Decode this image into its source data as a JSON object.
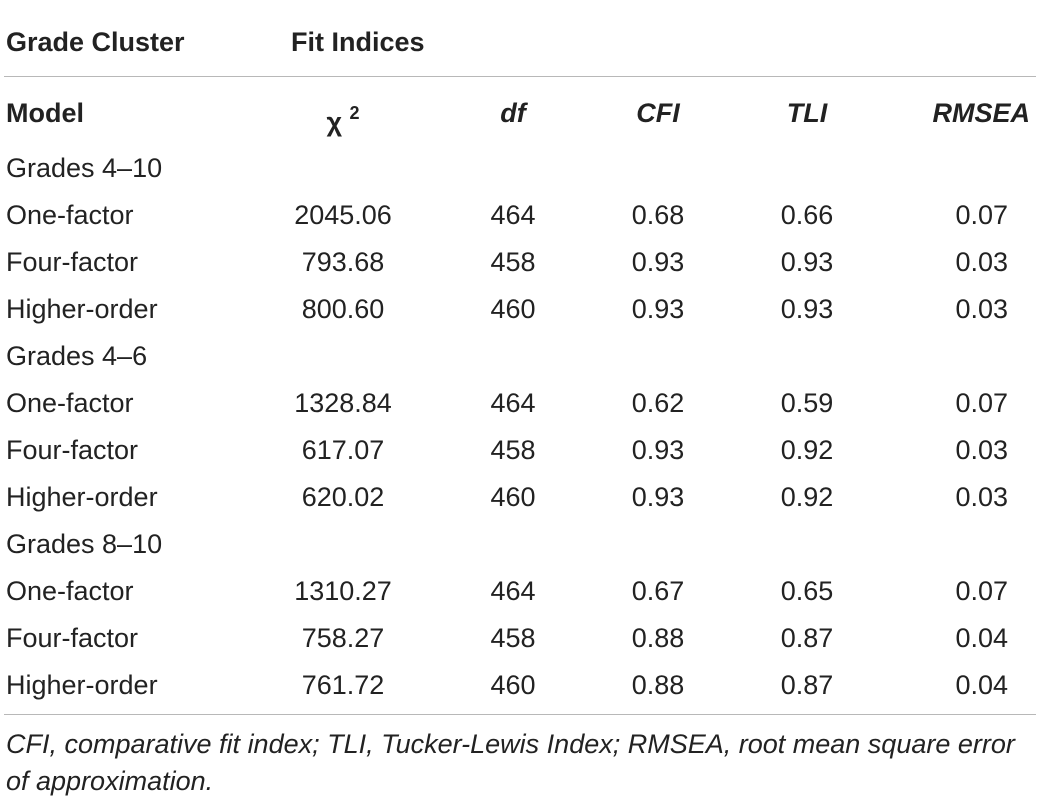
{
  "header": {
    "grade_cluster": "Grade Cluster",
    "fit_indices": "Fit Indices",
    "model": "Model",
    "chi_symbol": "χ",
    "chi_sup": "2",
    "df": "df",
    "cfi": "CFI",
    "tli": "TLI",
    "rmsea": "RMSEA"
  },
  "groups": [
    {
      "label": "Grades 4–10",
      "rows": [
        {
          "model": "One-factor",
          "chi2": "2045.06",
          "df": "464",
          "cfi": "0.68",
          "tli": "0.66",
          "rmsea": "0.07"
        },
        {
          "model": "Four-factor",
          "chi2": "793.68",
          "df": "458",
          "cfi": "0.93",
          "tli": "0.93",
          "rmsea": "0.03"
        },
        {
          "model": "Higher-order",
          "chi2": "800.60",
          "df": "460",
          "cfi": "0.93",
          "tli": "0.93",
          "rmsea": "0.03"
        }
      ]
    },
    {
      "label": "Grades 4–6",
      "rows": [
        {
          "model": "One-factor",
          "chi2": "1328.84",
          "df": "464",
          "cfi": "0.62",
          "tli": "0.59",
          "rmsea": "0.07"
        },
        {
          "model": "Four-factor",
          "chi2": "617.07",
          "df": "458",
          "cfi": "0.93",
          "tli": "0.92",
          "rmsea": "0.03"
        },
        {
          "model": "Higher-order",
          "chi2": "620.02",
          "df": "460",
          "cfi": "0.93",
          "tli": "0.92",
          "rmsea": "0.03"
        }
      ]
    },
    {
      "label": "Grades 8–10",
      "rows": [
        {
          "model": "One-factor",
          "chi2": "1310.27",
          "df": "464",
          "cfi": "0.67",
          "tli": "0.65",
          "rmsea": "0.07"
        },
        {
          "model": "Four-factor",
          "chi2": "758.27",
          "df": "458",
          "cfi": "0.88",
          "tli": "0.87",
          "rmsea": "0.04"
        },
        {
          "model": "Higher-order",
          "chi2": "761.72",
          "df": "460",
          "cfi": "0.88",
          "tli": "0.87",
          "rmsea": "0.04"
        }
      ]
    }
  ],
  "footnote": "CFI, comparative fit index; TLI, Tucker-Lewis Index; RMSEA, root mean square error of approximation."
}
